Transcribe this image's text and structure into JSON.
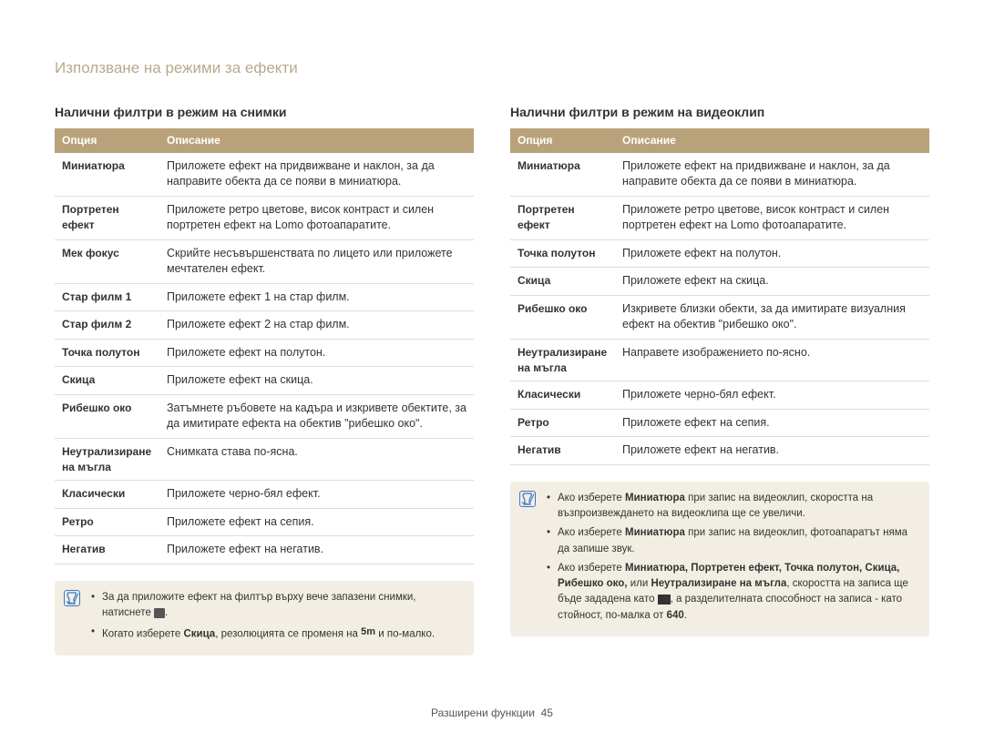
{
  "colors": {
    "header_bg": "#b9a27a",
    "header_text": "#ffffff",
    "page_title": "#b8a98d",
    "note_bg": "#f2eee4",
    "note_icon_border": "#3a78c9",
    "row_border": "#dddddd",
    "text": "#333333"
  },
  "typography": {
    "page_title_size": 17,
    "section_title_size": 14,
    "body_size": 12.5,
    "note_size": 11.5
  },
  "page_title": "Използване на режими за ефекти",
  "footer": {
    "label": "Разширени функции",
    "page_num": "45"
  },
  "left": {
    "heading": "Налични филтри в режим на снимки",
    "columns": {
      "c1": "Опция",
      "c2": "Описание"
    },
    "rows": [
      {
        "opt": "Миниатюра",
        "desc": "Приложете ефект на придвижване и наклон, за да направите обекта да се появи в миниатюра."
      },
      {
        "opt": "Портретен ефект",
        "desc": "Приложете ретро цветове, висок контраст и силен портретен ефект на Lomo фотоапаратите."
      },
      {
        "opt": "Мек фокус",
        "desc": "Скрийте несъвършенствата по лицето или приложете мечтателен ефект."
      },
      {
        "opt": "Стар филм 1",
        "desc": "Приложете ефект 1 на стар филм."
      },
      {
        "opt": "Стар филм 2",
        "desc": "Приложете ефект 2 на стар филм."
      },
      {
        "opt": "Точка полутон",
        "desc": "Приложете ефект на полутон."
      },
      {
        "opt": "Скица",
        "desc": "Приложете ефект на скица."
      },
      {
        "opt": "Рибешко око",
        "desc": "Затъмнете ръбовете на кадъра и изкривете обектите, за да имитирате ефекта на обектив \"рибешко око\"."
      },
      {
        "opt": "Неутрализиране на мъгла",
        "desc": "Снимката става по-ясна."
      },
      {
        "opt": "Класически",
        "desc": "Приложете черно-бял ефект."
      },
      {
        "opt": "Ретро",
        "desc": "Приложете ефект на сепия."
      },
      {
        "opt": "Негатив",
        "desc": "Приложете ефект на негатив."
      }
    ],
    "notes": {
      "n1_a": "За да приложите ефект на филтър върху вече запазени снимки, натиснете ",
      "n1_b": ".",
      "n2_a": "Когато изберете ",
      "n2_bold": "Скица",
      "n2_b": ", резолюцията се променя на ",
      "n2_res": "5m",
      "n2_c": " и по-малко."
    }
  },
  "right": {
    "heading": "Налични филтри в режим на видеоклип",
    "columns": {
      "c1": "Опция",
      "c2": "Описание"
    },
    "rows": [
      {
        "opt": "Миниатюра",
        "desc": "Приложете ефект на придвижване и наклон, за да направите обекта да се появи в миниатюра."
      },
      {
        "opt": "Портретен ефект",
        "desc": "Приложете ретро цветове, висок контраст и силен портретен ефект на Lomo фотоапаратите."
      },
      {
        "opt": "Точка полутон",
        "desc": "Приложете ефект на полутон."
      },
      {
        "opt": "Скица",
        "desc": "Приложете ефект на скица."
      },
      {
        "opt": "Рибешко око",
        "desc": "Изкривете близки обекти, за да имитирате визуалния ефект на обектив \"рибешко око\"."
      },
      {
        "opt": "Неутрализиране на мъгла",
        "desc": "Направете изображението по-ясно."
      },
      {
        "opt": "Класически",
        "desc": "Приложете черно-бял ефект."
      },
      {
        "opt": "Ретро",
        "desc": "Приложете ефект на сепия."
      },
      "",
      {
        "opt": "Негатив",
        "desc": "Приложете ефект на негатив."
      }
    ],
    "notes": {
      "n1_a": "Ако изберете ",
      "n1_bold": "Миниатюра",
      "n1_b": " при запис на видеоклип, скоростта на възпроизвеждането на видеоклипа ще се увеличи.",
      "n2_a": "Ако изберете ",
      "n2_bold": "Миниатюра",
      "n2_b": " при запис на видеоклип, фотоапаратът няма да запише звук.",
      "n3_a": "Ако изберете ",
      "n3_list": "Миниатюра, Портретен ефект, Точка полутон, Скица, Рибешко око,",
      "n3_or": " или ",
      "n3_last": "Неутрализиране на мъгла",
      "n3_b": ", скоростта на записа ще бъде зададена като ",
      "n3_c": ", а разделителната способност на записа - като стойност, по-малка от ",
      "n3_res": "640",
      "n3_d": "."
    }
  }
}
